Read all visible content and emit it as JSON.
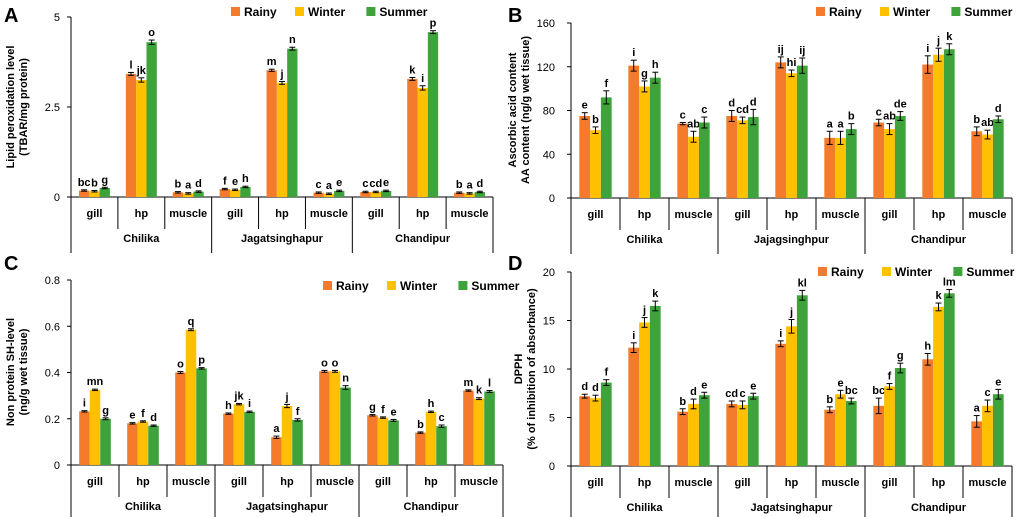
{
  "colors": {
    "Rainy": "#f47b2b",
    "Winter": "#ffc000",
    "Summer": "#3da33a",
    "star": "#e03030"
  },
  "chart_data": [
    {
      "type": "bar",
      "panel": "A",
      "ylabel": [
        "Lipid peroxidation level",
        "(TBAR/mg protein)"
      ],
      "ylim": [
        0,
        5
      ],
      "yticks": [
        0,
        2.5,
        5
      ],
      "ytick_labels": [
        "0",
        "2.5",
        "5"
      ],
      "sites": [
        "Chilika",
        "Jagatsinghapur",
        "Chandipur"
      ],
      "tissues": [
        "gill",
        "hp",
        "muscle"
      ],
      "series": [
        {
          "name": "Rainy",
          "values": [
            0.18,
            3.42,
            0.13,
            0.22,
            3.52,
            0.12,
            0.14,
            3.28,
            0.12
          ],
          "errors": [
            0.02,
            0.04,
            0.02,
            0.02,
            0.03,
            0.02,
            0.02,
            0.04,
            0.02
          ],
          "labels": [
            "bc",
            "l",
            "b",
            "f",
            "m",
            "c",
            "c",
            "k",
            "b"
          ]
        },
        {
          "name": "Winter",
          "values": [
            0.16,
            3.25,
            0.1,
            0.2,
            3.17,
            0.09,
            0.14,
            3.03,
            0.1
          ],
          "errors": [
            0.02,
            0.06,
            0.02,
            0.02,
            0.04,
            0.02,
            0.02,
            0.06,
            0.02
          ],
          "labels": [
            "b",
            "jk",
            "a",
            "e",
            "j",
            "a",
            "cd",
            "i",
            "a"
          ]
        },
        {
          "name": "Summer",
          "values": [
            0.25,
            4.3,
            0.15,
            0.28,
            4.12,
            0.17,
            0.17,
            4.58,
            0.14
          ],
          "errors": [
            0.02,
            0.06,
            0.02,
            0.02,
            0.04,
            0.02,
            0.02,
            0.04,
            0.02
          ],
          "labels": [
            "g",
            "o",
            "d",
            "h",
            "n",
            "e",
            "e",
            "p",
            "d"
          ]
        }
      ]
    },
    {
      "type": "bar",
      "panel": "B",
      "ylabel": [
        "Ascorbic acid content",
        "AA content (ng/g wet tissue)"
      ],
      "ylim": [
        0,
        160
      ],
      "yticks": [
        0,
        40,
        80,
        120,
        160
      ],
      "ytick_labels": [
        "0",
        "40",
        "80",
        "120",
        "160"
      ],
      "sites": [
        "Chilika",
        "Jajagsinghpur",
        "Chandipur"
      ],
      "tissues": [
        "gill",
        "hp",
        "muscle"
      ],
      "series": [
        {
          "name": "Rainy",
          "values": [
            75,
            121,
            68,
            75,
            124,
            55,
            69,
            122,
            61
          ],
          "errors": [
            3,
            5,
            1,
            5,
            5,
            6,
            3,
            8,
            4
          ],
          "labels": [
            "e",
            "i",
            "c",
            "d",
            "ij",
            "a",
            "c",
            "i",
            "b"
          ]
        },
        {
          "name": "Winter",
          "values": [
            62,
            102,
            56,
            71,
            114,
            55,
            63,
            131,
            58
          ],
          "errors": [
            3,
            5,
            5,
            3,
            3,
            6,
            5,
            6,
            4
          ],
          "labels": [
            "b",
            "g",
            "ab",
            "cd",
            "hi",
            "a",
            "ab",
            "j",
            "ab"
          ]
        },
        {
          "name": "Summer",
          "values": [
            92,
            110,
            69,
            74,
            121,
            63,
            75,
            136,
            72
          ],
          "errors": [
            6,
            5,
            5,
            7,
            7,
            5,
            4,
            5,
            3
          ],
          "labels": [
            "f",
            "h",
            "c",
            "d",
            "ij",
            "b",
            "de",
            "k",
            "d"
          ]
        }
      ]
    },
    {
      "type": "bar",
      "panel": "C",
      "ylabel": [
        "Non protein SH-level",
        "(ng/g wet tissue)"
      ],
      "ylim": [
        0,
        0.8
      ],
      "yticks": [
        0,
        0.2,
        0.4,
        0.6,
        0.8
      ],
      "ytick_labels": [
        "0",
        "0.2",
        "0.4",
        "0.6",
        "0.8"
      ],
      "sites": [
        "Chilika",
        "Jagatsinghapur",
        "Chandipur"
      ],
      "tissues": [
        "gill",
        "hp",
        "muscle"
      ],
      "series": [
        {
          "name": "Rainy",
          "values": [
            0.232,
            0.18,
            0.4,
            0.222,
            0.12,
            0.405,
            0.215,
            0.14,
            0.322
          ],
          "errors": [
            0.003,
            0.003,
            0.004,
            0.003,
            0.005,
            0.004,
            0.003,
            0.003,
            0.003
          ],
          "labels": [
            "i",
            "e",
            "o",
            "h",
            "a",
            "o",
            "g",
            "b",
            "m"
          ]
        },
        {
          "name": "Winter",
          "values": [
            0.325,
            0.188,
            0.585,
            0.263,
            0.255,
            0.405,
            0.205,
            0.23,
            0.287
          ],
          "errors": [
            0.003,
            0.003,
            0.004,
            0.003,
            0.007,
            0.004,
            0.003,
            0.003,
            0.004
          ],
          "labels": [
            "mn",
            "f",
            "q",
            "jk",
            "j",
            "o",
            "f",
            "h",
            "k"
          ]
        },
        {
          "name": "Summer",
          "values": [
            0.2,
            0.17,
            0.418,
            0.23,
            0.195,
            0.335,
            0.193,
            0.168,
            0.318
          ],
          "errors": [
            0.004,
            0.003,
            0.003,
            0.003,
            0.005,
            0.008,
            0.004,
            0.005,
            0.004
          ],
          "labels": [
            "g",
            "d",
            "p",
            "i",
            "f",
            "n",
            "e",
            "c",
            "l"
          ]
        }
      ]
    },
    {
      "type": "bar",
      "panel": "D",
      "ylabel": [
        "DPPH",
        "(% of inhibition of absorbance)"
      ],
      "ylim": [
        0,
        20
      ],
      "yticks": [
        0,
        5,
        10,
        15,
        20
      ],
      "ytick_labels": [
        "0",
        "5",
        "10",
        "15",
        "20"
      ],
      "sites": [
        "Chilika",
        "Jagatsinghapur",
        "Chandipur"
      ],
      "tissues": [
        "gill",
        "hp",
        "muscle"
      ],
      "series": [
        {
          "name": "Rainy",
          "values": [
            7.2,
            12.2,
            5.6,
            6.4,
            12.6,
            5.8,
            6.2,
            11.0,
            4.6
          ],
          "errors": [
            0.2,
            0.5,
            0.3,
            0.3,
            0.3,
            0.3,
            0.8,
            0.6,
            0.6
          ],
          "labels": [
            "d",
            "i",
            "b",
            "cd",
            "i",
            "b",
            "bc",
            "h",
            "a"
          ]
        },
        {
          "name": "Winter",
          "values": [
            7.0,
            14.8,
            6.4,
            6.3,
            14.4,
            7.4,
            8.2,
            16.4,
            6.2
          ],
          "errors": [
            0.3,
            0.5,
            0.5,
            0.4,
            0.7,
            0.4,
            0.3,
            0.4,
            0.6
          ],
          "labels": [
            "d",
            "j",
            "d",
            "c",
            "j",
            "e",
            "f",
            "k",
            "c"
          ]
        },
        {
          "name": "Summer",
          "values": [
            8.6,
            16.5,
            7.3,
            7.2,
            17.6,
            6.7,
            10.1,
            17.8,
            7.4
          ],
          "errors": [
            0.3,
            0.5,
            0.3,
            0.3,
            0.5,
            0.3,
            0.5,
            0.4,
            0.5
          ],
          "labels": [
            "f",
            "k",
            "e",
            "e",
            "kl",
            "bc",
            "g",
            "lm",
            "e"
          ]
        }
      ]
    }
  ]
}
